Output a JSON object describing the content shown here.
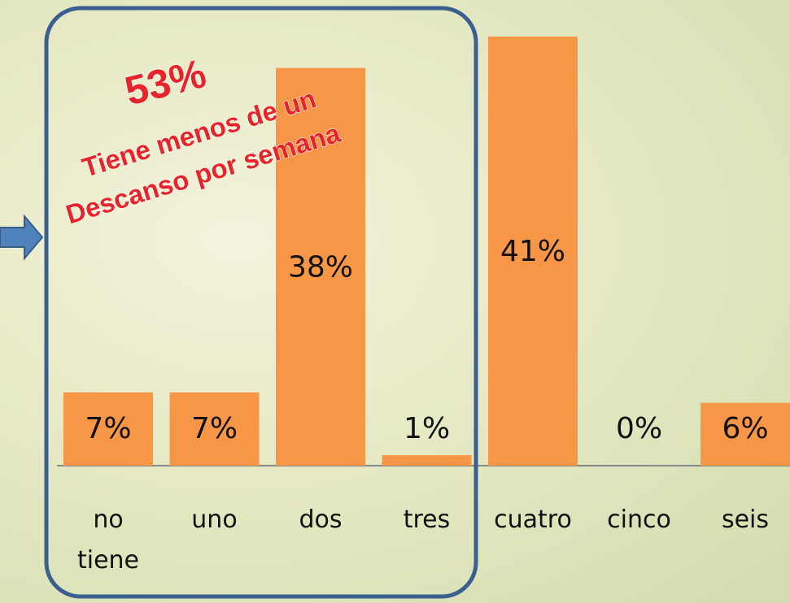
{
  "chart_data": {
    "type": "bar",
    "categories": [
      "no tiene",
      "uno",
      "dos",
      "tres",
      "cuatro",
      "cinco",
      "seis"
    ],
    "values": [
      7,
      7,
      38,
      1,
      41,
      0,
      6
    ],
    "value_labels": [
      "7%",
      "7%",
      "38%",
      "1%",
      "41%",
      "0%",
      "6%"
    ],
    "color": "#f79646",
    "annotations": [
      "53%",
      "Tiene menos de un",
      "Descanso por semana"
    ]
  }
}
